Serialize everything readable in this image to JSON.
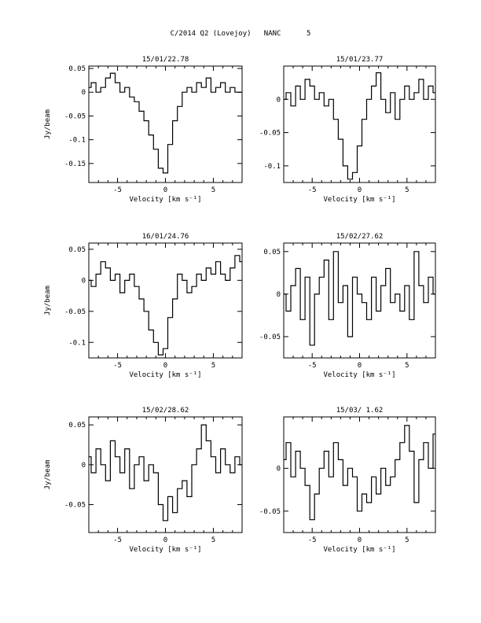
{
  "page_title": "C/2014 Q2 (Lovejoy)   NANC      5",
  "chart_data": [
    {
      "type": "line",
      "title": "15/01/22.78",
      "xlabel": "Velocity [km s⁻¹]",
      "ylabel": "Jy/beam",
      "xlim": [
        -8,
        8
      ],
      "ylim": [
        -0.19,
        0.055
      ],
      "xticks": [
        "-5",
        "0",
        "5"
      ],
      "yticks": [
        "0.05",
        "0",
        "-0.05",
        "-0.1",
        "-0.15"
      ],
      "x": [
        -8.0,
        -7.5,
        -7.0,
        -6.5,
        -6.0,
        -5.5,
        -5.0,
        -4.5,
        -4.0,
        -3.5,
        -3.0,
        -2.5,
        -2.0,
        -1.5,
        -1.0,
        -0.5,
        0.0,
        0.5,
        1.0,
        1.5,
        2.0,
        2.5,
        3.0,
        3.5,
        4.0,
        4.5,
        5.0,
        5.5,
        6.0,
        6.5,
        7.0,
        7.5,
        8.0
      ],
      "values": [
        0.01,
        0.02,
        0.0,
        0.01,
        0.03,
        0.04,
        0.02,
        0.0,
        0.01,
        -0.01,
        -0.02,
        -0.04,
        -0.06,
        -0.09,
        -0.12,
        -0.16,
        -0.17,
        -0.11,
        -0.06,
        -0.03,
        0.0,
        0.01,
        0.0,
        0.02,
        0.01,
        0.03,
        0.0,
        0.01,
        0.02,
        0.0,
        0.01,
        0.0,
        0.0
      ]
    },
    {
      "type": "line",
      "title": "15/01/23.77",
      "xlabel": "Velocity [km s⁻¹]",
      "ylabel": "",
      "xlim": [
        -8,
        8
      ],
      "ylim": [
        -0.125,
        0.05
      ],
      "xticks": [
        "-5",
        "0",
        "5"
      ],
      "yticks": [
        "0",
        "-0.05",
        "-0.1"
      ],
      "x": [
        -8.0,
        -7.5,
        -7.0,
        -6.5,
        -6.0,
        -5.5,
        -5.0,
        -4.5,
        -4.0,
        -3.5,
        -3.0,
        -2.5,
        -2.0,
        -1.5,
        -1.0,
        -0.5,
        0.0,
        0.5,
        1.0,
        1.5,
        2.0,
        2.5,
        3.0,
        3.5,
        4.0,
        4.5,
        5.0,
        5.5,
        6.0,
        6.5,
        7.0,
        7.5,
        8.0
      ],
      "values": [
        0.0,
        0.01,
        -0.01,
        0.02,
        0.0,
        0.03,
        0.02,
        0.0,
        0.01,
        -0.01,
        0.0,
        -0.03,
        -0.06,
        -0.1,
        -0.12,
        -0.11,
        -0.07,
        -0.03,
        0.0,
        0.02,
        0.04,
        0.0,
        -0.02,
        0.01,
        -0.03,
        0.0,
        0.02,
        0.0,
        0.01,
        0.03,
        0.0,
        0.02,
        0.01
      ]
    },
    {
      "type": "line",
      "title": "16/01/24.76",
      "xlabel": "Velocity [km s⁻¹]",
      "ylabel": "Jy/beam",
      "xlim": [
        -8,
        8
      ],
      "ylim": [
        -0.125,
        0.06
      ],
      "xticks": [
        "-5",
        "0",
        "5"
      ],
      "yticks": [
        "0.05",
        "0",
        "-0.05",
        "-0.1"
      ],
      "x": [
        -8.0,
        -7.5,
        -7.0,
        -6.5,
        -6.0,
        -5.5,
        -5.0,
        -4.5,
        -4.0,
        -3.5,
        -3.0,
        -2.5,
        -2.0,
        -1.5,
        -1.0,
        -0.5,
        0.0,
        0.5,
        1.0,
        1.5,
        2.0,
        2.5,
        3.0,
        3.5,
        4.0,
        4.5,
        5.0,
        5.5,
        6.0,
        6.5,
        7.0,
        7.5,
        8.0
      ],
      "values": [
        0.0,
        -0.01,
        0.01,
        0.03,
        0.02,
        0.0,
        0.01,
        -0.02,
        0.0,
        0.01,
        -0.01,
        -0.03,
        -0.05,
        -0.08,
        -0.1,
        -0.12,
        -0.11,
        -0.06,
        -0.03,
        0.01,
        0.0,
        -0.02,
        -0.01,
        0.01,
        0.0,
        0.02,
        0.01,
        0.03,
        0.01,
        0.0,
        0.02,
        0.04,
        0.03
      ]
    },
    {
      "type": "line",
      "title": "15/02/27.62",
      "xlabel": "Velocity [km s⁻¹]",
      "ylabel": "",
      "xlim": [
        -8,
        8
      ],
      "ylim": [
        -0.075,
        0.06
      ],
      "xticks": [
        "-5",
        "0",
        "5"
      ],
      "yticks": [
        "0.05",
        "0",
        "-0.05"
      ],
      "x": [
        -8.0,
        -7.5,
        -7.0,
        -6.5,
        -6.0,
        -5.5,
        -5.0,
        -4.5,
        -4.0,
        -3.5,
        -3.0,
        -2.5,
        -2.0,
        -1.5,
        -1.0,
        -0.5,
        0.0,
        0.5,
        1.0,
        1.5,
        2.0,
        2.5,
        3.0,
        3.5,
        4.0,
        4.5,
        5.0,
        5.5,
        6.0,
        6.5,
        7.0,
        7.5,
        8.0
      ],
      "values": [
        0.0,
        -0.02,
        0.01,
        0.03,
        -0.03,
        0.02,
        -0.06,
        0.0,
        0.02,
        0.04,
        -0.03,
        0.05,
        -0.01,
        0.01,
        -0.05,
        0.02,
        0.0,
        -0.01,
        -0.03,
        0.02,
        -0.02,
        0.01,
        0.03,
        -0.01,
        0.0,
        -0.02,
        0.01,
        -0.03,
        0.05,
        0.01,
        -0.01,
        0.02,
        0.0
      ]
    },
    {
      "type": "line",
      "title": "15/02/28.62",
      "xlabel": "Velocity [km s⁻¹]",
      "ylabel": "Jy/beam",
      "xlim": [
        -8,
        8
      ],
      "ylim": [
        -0.085,
        0.06
      ],
      "xticks": [
        "-5",
        "0",
        "5"
      ],
      "yticks": [
        "0.05",
        "0",
        "-0.05"
      ],
      "x": [
        -8.0,
        -7.5,
        -7.0,
        -6.5,
        -6.0,
        -5.5,
        -5.0,
        -4.5,
        -4.0,
        -3.5,
        -3.0,
        -2.5,
        -2.0,
        -1.5,
        -1.0,
        -0.5,
        0.0,
        0.5,
        1.0,
        1.5,
        2.0,
        2.5,
        3.0,
        3.5,
        4.0,
        4.5,
        5.0,
        5.5,
        6.0,
        6.5,
        7.0,
        7.5,
        8.0
      ],
      "values": [
        0.01,
        -0.01,
        0.02,
        0.0,
        -0.02,
        0.03,
        0.01,
        -0.01,
        0.02,
        -0.03,
        0.0,
        0.01,
        -0.02,
        0.0,
        -0.01,
        -0.05,
        -0.07,
        -0.04,
        -0.06,
        -0.03,
        -0.02,
        -0.04,
        0.0,
        0.02,
        0.05,
        0.03,
        0.01,
        -0.01,
        0.02,
        0.0,
        -0.01,
        0.01,
        0.0
      ]
    },
    {
      "type": "line",
      "title": "15/03/ 1.62",
      "xlabel": "Velocity [km s⁻¹]",
      "ylabel": "",
      "xlim": [
        -8,
        8
      ],
      "ylim": [
        -0.075,
        0.06
      ],
      "xticks": [
        "-5",
        "0",
        "5"
      ],
      "yticks": [
        "0",
        "-0.05"
      ],
      "x": [
        -8.0,
        -7.5,
        -7.0,
        -6.5,
        -6.0,
        -5.5,
        -5.0,
        -4.5,
        -4.0,
        -3.5,
        -3.0,
        -2.5,
        -2.0,
        -1.5,
        -1.0,
        -0.5,
        0.0,
        0.5,
        1.0,
        1.5,
        2.0,
        2.5,
        3.0,
        3.5,
        4.0,
        4.5,
        5.0,
        5.5,
        6.0,
        6.5,
        7.0,
        7.5,
        8.0
      ],
      "values": [
        0.01,
        0.03,
        -0.01,
        0.02,
        0.0,
        -0.02,
        -0.06,
        -0.03,
        0.0,
        0.02,
        -0.01,
        0.03,
        0.01,
        -0.02,
        0.0,
        -0.01,
        -0.05,
        -0.03,
        -0.04,
        -0.01,
        -0.03,
        0.0,
        -0.02,
        -0.01,
        0.01,
        0.03,
        0.05,
        0.02,
        -0.04,
        0.01,
        0.03,
        0.0,
        0.04
      ]
    }
  ]
}
